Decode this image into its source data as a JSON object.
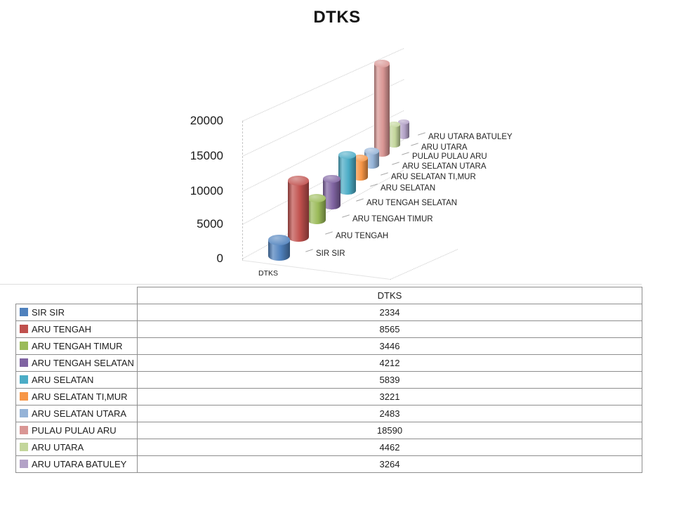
{
  "title": "DTKS",
  "chart_data": {
    "type": "bar",
    "subtype": "3d-cylinder",
    "title": "DTKS",
    "series_name": "DTKS",
    "series_axis_label": "DTKS",
    "categories": [
      "SIR SIR",
      "ARU TENGAH",
      "ARU TENGAH TIMUR",
      "ARU TENGAH SELATAN",
      "ARU SELATAN",
      "ARU SELATAN TI,MUR",
      "ARU SELATAN UTARA",
      "PULAU PULAU ARU",
      "ARU UTARA",
      "ARU UTARA BATULEY"
    ],
    "values": [
      2334,
      8565,
      3446,
      4212,
      5839,
      3221,
      2483,
      18590,
      4462,
      3264
    ],
    "colors": [
      "#4F81BD",
      "#C0504D",
      "#9BBB59",
      "#8064A2",
      "#4BACC6",
      "#F79646",
      "#95B3D7",
      "#D99694",
      "#C3D69B",
      "#B3A2C7"
    ],
    "y_tick_labels": [
      "0",
      "5000",
      "10000",
      "15000",
      "20000"
    ],
    "ylim": [
      0,
      20000
    ],
    "y_tick_step": 5000,
    "grid": "depth-dotted",
    "legend_position": "data-table"
  },
  "table": {
    "header": "DTKS"
  }
}
